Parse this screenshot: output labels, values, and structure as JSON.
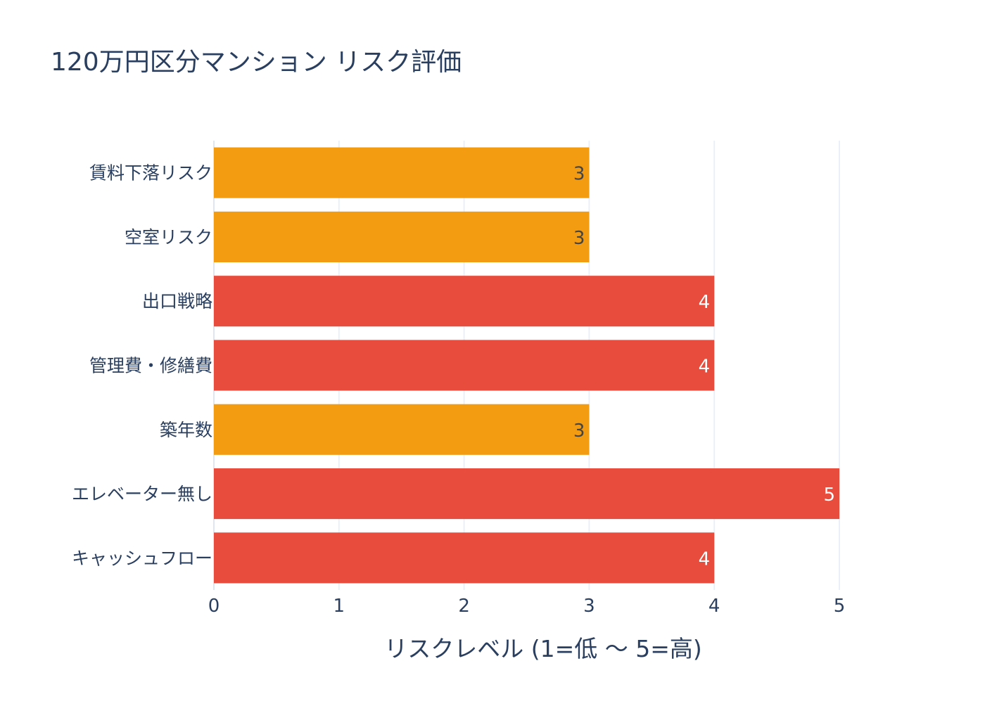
{
  "chart_data": {
    "type": "bar",
    "orientation": "horizontal",
    "title": "120万円区分マンション リスク評価",
    "xlabel": "リスクレベル (1=低 ～ 5=高)",
    "ylabel": "",
    "xlim": [
      0,
      5
    ],
    "xticks": [
      "0",
      "1",
      "2",
      "3",
      "4",
      "5"
    ],
    "grid": true,
    "categories": [
      "賃料下落リスク",
      "空室リスク",
      "出口戦略",
      "管理費・修繕費",
      "築年数",
      "エレベーター無し",
      "キャッシュフロー"
    ],
    "values": [
      3,
      3,
      4,
      4,
      3,
      5,
      4
    ],
    "bar_colors": [
      "#F39C12",
      "#F39C12",
      "#E74C3C",
      "#E74C3C",
      "#F39C12",
      "#E74C3C",
      "#E74C3C"
    ],
    "data_labels": [
      "3",
      "3",
      "4",
      "4",
      "3",
      "5",
      "4"
    ],
    "colors": {
      "high": "#E74C3C",
      "medium": "#F39C12",
      "text": "#2a3f5f",
      "grid": "#EBF0F8"
    }
  }
}
